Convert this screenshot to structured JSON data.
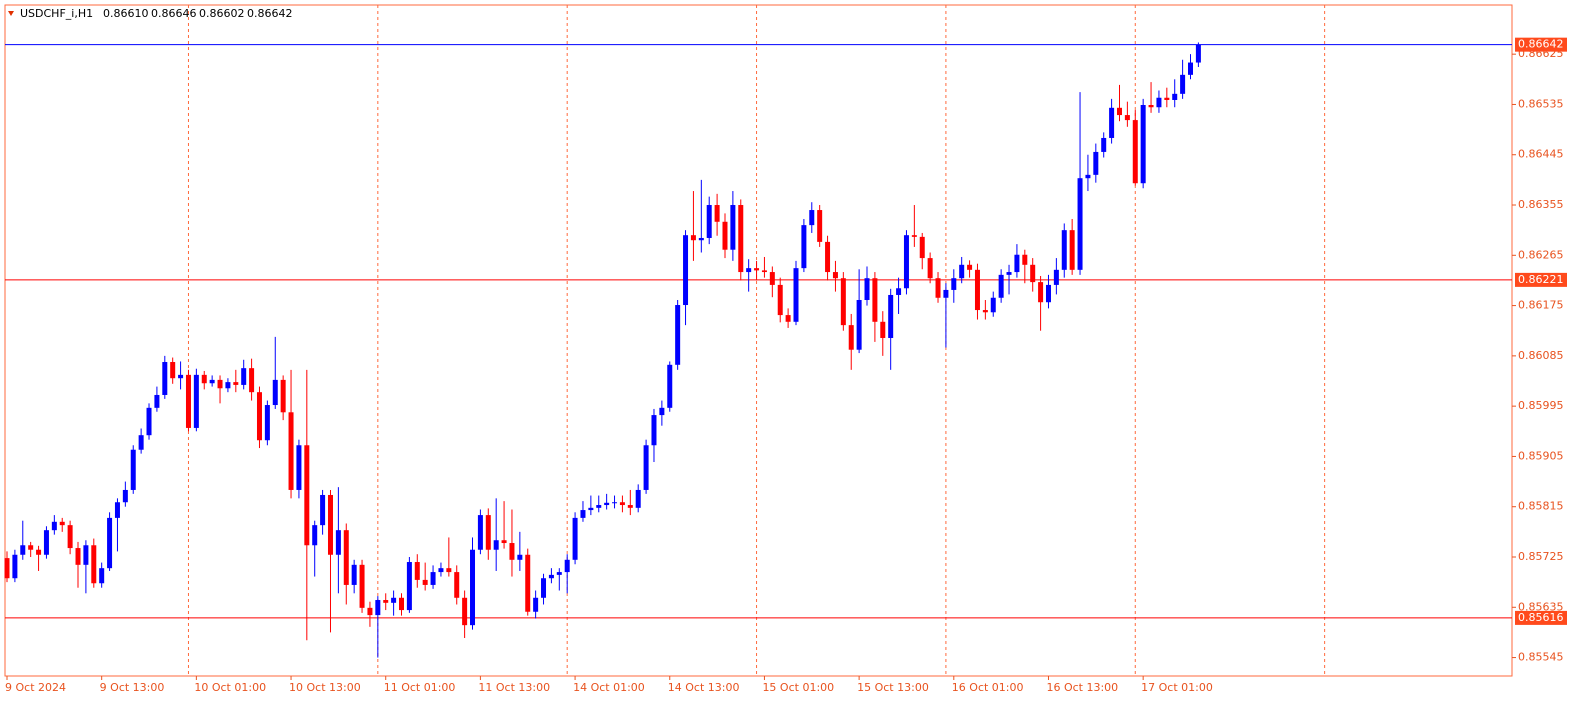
{
  "chart_data": {
    "type": "candlestick",
    "header": {
      "symbol": "USDCHF_i,H1",
      "values": [
        "0.86610",
        "0.86646",
        "0.86602",
        "0.86642"
      ]
    },
    "up_color": "#0000ff",
    "down_color": "#ff0000",
    "ylim": [
      0.85512,
      0.86713
    ],
    "yticks": [
      0.86625,
      0.86535,
      0.86445,
      0.86355,
      0.86265,
      0.86175,
      0.86085,
      0.85995,
      0.85905,
      0.85815,
      0.85725,
      0.85635,
      0.85545
    ],
    "price_lines": [
      {
        "value": 0.86642,
        "color": "#0000ff"
      },
      {
        "value": 0.86221,
        "color": "#ff0000"
      },
      {
        "value": 0.85616,
        "color": "#ff0000"
      }
    ],
    "categories": [
      "9 Oct 2024",
      null,
      null,
      null,
      null,
      null,
      null,
      null,
      null,
      null,
      null,
      null,
      "9 Oct 13:00",
      null,
      null,
      null,
      null,
      null,
      null,
      null,
      null,
      null,
      null,
      null,
      "10 Oct 01:00",
      null,
      null,
      null,
      null,
      null,
      null,
      null,
      null,
      null,
      null,
      null,
      "10 Oct 13:00",
      null,
      null,
      null,
      null,
      null,
      null,
      null,
      null,
      null,
      null,
      null,
      "11 Oct 01:00",
      null,
      null,
      null,
      null,
      null,
      null,
      null,
      null,
      null,
      null,
      null,
      "11 Oct 13:00",
      null,
      null,
      null,
      null,
      null,
      null,
      null,
      null,
      null,
      null,
      null,
      "14 Oct 01:00",
      null,
      null,
      null,
      null,
      null,
      null,
      null,
      null,
      null,
      null,
      null,
      "14 Oct 13:00",
      null,
      null,
      null,
      null,
      null,
      null,
      null,
      null,
      null,
      null,
      null,
      "15 Oct 01:00",
      null,
      null,
      null,
      null,
      null,
      null,
      null,
      null,
      null,
      null,
      null,
      "15 Oct 13:00",
      null,
      null,
      null,
      null,
      null,
      null,
      null,
      null,
      null,
      null,
      null,
      "16 Oct 01:00",
      null,
      null,
      null,
      null,
      null,
      null,
      null,
      null,
      null,
      null,
      null,
      "16 Oct 13:00",
      null,
      null,
      null,
      null,
      null,
      null,
      null,
      null,
      null,
      null,
      null,
      "17 Oct 01:00",
      null,
      null,
      null,
      null,
      null,
      null,
      null
    ],
    "ohlc": [
      [
        0.85723,
        0.85735,
        0.8568,
        0.85687
      ],
      [
        0.85687,
        0.85738,
        0.8568,
        0.85729
      ],
      [
        0.85729,
        0.8579,
        0.8572,
        0.85746
      ],
      [
        0.85746,
        0.85752,
        0.85725,
        0.85738
      ],
      [
        0.85738,
        0.85745,
        0.857,
        0.85729
      ],
      [
        0.85729,
        0.8578,
        0.85722,
        0.85773
      ],
      [
        0.85773,
        0.858,
        0.85765,
        0.85788
      ],
      [
        0.85788,
        0.85795,
        0.8577,
        0.85782
      ],
      [
        0.85782,
        0.8579,
        0.8573,
        0.85741
      ],
      [
        0.85741,
        0.85752,
        0.8567,
        0.85711
      ],
      [
        0.85711,
        0.85755,
        0.8566,
        0.85746
      ],
      [
        0.85746,
        0.85758,
        0.8567,
        0.85678
      ],
      [
        0.85678,
        0.85715,
        0.8567,
        0.85705
      ],
      [
        0.85705,
        0.85805,
        0.857,
        0.85795
      ],
      [
        0.85795,
        0.8583,
        0.85735,
        0.85823
      ],
      [
        0.85823,
        0.8586,
        0.85815,
        0.85845
      ],
      [
        0.85845,
        0.85925,
        0.85838,
        0.85917
      ],
      [
        0.85917,
        0.85955,
        0.8591,
        0.85943
      ],
      [
        0.85943,
        0.86,
        0.85935,
        0.85992
      ],
      [
        0.85992,
        0.8603,
        0.85985,
        0.86015
      ],
      [
        0.86015,
        0.86085,
        0.86008,
        0.86074
      ],
      [
        0.86074,
        0.86082,
        0.86035,
        0.86045
      ],
      [
        0.86045,
        0.86075,
        0.86025,
        0.86051
      ],
      [
        0.86051,
        0.8606,
        0.8595,
        0.85956
      ],
      [
        0.85956,
        0.86062,
        0.8595,
        0.86051
      ],
      [
        0.86051,
        0.86058,
        0.86025,
        0.86036
      ],
      [
        0.86036,
        0.8605,
        0.8603,
        0.86042
      ],
      [
        0.86042,
        0.8605,
        0.86,
        0.86027
      ],
      [
        0.86027,
        0.86045,
        0.8602,
        0.86038
      ],
      [
        0.86038,
        0.8606,
        0.8602,
        0.86033
      ],
      [
        0.86033,
        0.86078,
        0.86025,
        0.86063
      ],
      [
        0.86063,
        0.8608,
        0.86005,
        0.8602
      ],
      [
        0.8602,
        0.8603,
        0.8592,
        0.85934
      ],
      [
        0.85934,
        0.86005,
        0.85925,
        0.85997
      ],
      [
        0.85997,
        0.86119,
        0.8599,
        0.86042
      ],
      [
        0.86042,
        0.8605,
        0.8597,
        0.85984
      ],
      [
        0.85984,
        0.8606,
        0.8583,
        0.85845
      ],
      [
        0.85845,
        0.85935,
        0.8583,
        0.85925
      ],
      [
        0.85925,
        0.8606,
        0.85576,
        0.85746
      ],
      [
        0.85746,
        0.8579,
        0.8569,
        0.85782
      ],
      [
        0.85782,
        0.85845,
        0.85765,
        0.85836
      ],
      [
        0.85836,
        0.85845,
        0.8559,
        0.85729
      ],
      [
        0.85729,
        0.8585,
        0.8566,
        0.85773
      ],
      [
        0.85773,
        0.85785,
        0.8564,
        0.85675
      ],
      [
        0.85675,
        0.8572,
        0.8566,
        0.85711
      ],
      [
        0.85711,
        0.8572,
        0.85625,
        0.85634
      ],
      [
        0.85634,
        0.85645,
        0.856,
        0.85621
      ],
      [
        0.85621,
        0.85655,
        0.85545,
        0.85648
      ],
      [
        0.85648,
        0.8566,
        0.8563,
        0.85643
      ],
      [
        0.85643,
        0.85665,
        0.8562,
        0.85652
      ],
      [
        0.85652,
        0.8566,
        0.8562,
        0.8563
      ],
      [
        0.8563,
        0.85725,
        0.85625,
        0.85716
      ],
      [
        0.85716,
        0.8573,
        0.8567,
        0.85684
      ],
      [
        0.85684,
        0.85715,
        0.85665,
        0.85675
      ],
      [
        0.85675,
        0.8571,
        0.85668,
        0.85698
      ],
      [
        0.85698,
        0.85715,
        0.8569,
        0.85705
      ],
      [
        0.85705,
        0.8576,
        0.8569,
        0.85698
      ],
      [
        0.85698,
        0.8571,
        0.8564,
        0.85652
      ],
      [
        0.85652,
        0.85665,
        0.8558,
        0.85603
      ],
      [
        0.85603,
        0.8576,
        0.85595,
        0.85738
      ],
      [
        0.85738,
        0.8581,
        0.8573,
        0.858
      ],
      [
        0.858,
        0.85812,
        0.8572,
        0.85738
      ],
      [
        0.85738,
        0.8583,
        0.857,
        0.85755
      ],
      [
        0.85755,
        0.85825,
        0.8574,
        0.8575
      ],
      [
        0.8575,
        0.8581,
        0.8569,
        0.8572
      ],
      [
        0.8572,
        0.8577,
        0.857,
        0.85729
      ],
      [
        0.85729,
        0.8574,
        0.8562,
        0.85627
      ],
      [
        0.85627,
        0.85665,
        0.85615,
        0.85652
      ],
      [
        0.85652,
        0.85695,
        0.8564,
        0.85687
      ],
      [
        0.85687,
        0.85705,
        0.85678,
        0.85693
      ],
      [
        0.85693,
        0.85705,
        0.85665,
        0.85698
      ],
      [
        0.85698,
        0.8573,
        0.8566,
        0.8572
      ],
      [
        0.8572,
        0.85805,
        0.85712,
        0.85795
      ],
      [
        0.85795,
        0.85825,
        0.85788,
        0.85809
      ],
      [
        0.85809,
        0.85835,
        0.858,
        0.85813
      ],
      [
        0.85813,
        0.85835,
        0.85805,
        0.85818
      ],
      [
        0.85818,
        0.85838,
        0.8581,
        0.85822
      ],
      [
        0.85822,
        0.85835,
        0.85812,
        0.85823
      ],
      [
        0.85823,
        0.85835,
        0.85805,
        0.85818
      ],
      [
        0.85818,
        0.85845,
        0.858,
        0.85813
      ],
      [
        0.85813,
        0.85855,
        0.85805,
        0.85845
      ],
      [
        0.85845,
        0.85935,
        0.85838,
        0.85925
      ],
      [
        0.85925,
        0.8599,
        0.85895,
        0.85979
      ],
      [
        0.85979,
        0.86005,
        0.8596,
        0.85992
      ],
      [
        0.85992,
        0.86075,
        0.85985,
        0.86069
      ],
      [
        0.86069,
        0.86185,
        0.8606,
        0.86176
      ],
      [
        0.86176,
        0.8631,
        0.8614,
        0.86301
      ],
      [
        0.86301,
        0.8638,
        0.86255,
        0.86292
      ],
      [
        0.86292,
        0.864,
        0.8627,
        0.86296
      ],
      [
        0.86296,
        0.8637,
        0.86285,
        0.86355
      ],
      [
        0.86355,
        0.86375,
        0.863,
        0.86325
      ],
      [
        0.86325,
        0.8634,
        0.8626,
        0.86275
      ],
      [
        0.86275,
        0.8638,
        0.86255,
        0.86355
      ],
      [
        0.86355,
        0.86365,
        0.8622,
        0.86235
      ],
      [
        0.86235,
        0.86258,
        0.862,
        0.86242
      ],
      [
        0.86242,
        0.86255,
        0.8622,
        0.86238
      ],
      [
        0.86238,
        0.86262,
        0.86225,
        0.86235
      ],
      [
        0.86235,
        0.86245,
        0.8619,
        0.86212
      ],
      [
        0.86212,
        0.86225,
        0.86145,
        0.86158
      ],
      [
        0.86158,
        0.8617,
        0.86135,
        0.86146
      ],
      [
        0.86146,
        0.86255,
        0.8614,
        0.86242
      ],
      [
        0.86242,
        0.8633,
        0.86235,
        0.86319
      ],
      [
        0.86319,
        0.8636,
        0.86305,
        0.86346
      ],
      [
        0.86346,
        0.86355,
        0.8628,
        0.86289
      ],
      [
        0.86289,
        0.863,
        0.8622,
        0.86235
      ],
      [
        0.86235,
        0.86255,
        0.862,
        0.86224
      ],
      [
        0.86224,
        0.86235,
        0.8613,
        0.8614
      ],
      [
        0.8614,
        0.8616,
        0.8606,
        0.86096
      ],
      [
        0.86096,
        0.8624,
        0.8609,
        0.86185
      ],
      [
        0.86185,
        0.86245,
        0.86175,
        0.86224
      ],
      [
        0.86224,
        0.86235,
        0.8611,
        0.86146
      ],
      [
        0.86146,
        0.86165,
        0.86085,
        0.86117
      ],
      [
        0.86117,
        0.86205,
        0.8606,
        0.86194
      ],
      [
        0.86194,
        0.86225,
        0.8616,
        0.86206
      ],
      [
        0.86206,
        0.8631,
        0.86195,
        0.86301
      ],
      [
        0.86301,
        0.86355,
        0.8628,
        0.86298
      ],
      [
        0.86298,
        0.86305,
        0.8624,
        0.8626
      ],
      [
        0.8626,
        0.8627,
        0.86215,
        0.86224
      ],
      [
        0.86224,
        0.86235,
        0.8618,
        0.86189
      ],
      [
        0.86189,
        0.86215,
        0.861,
        0.86203
      ],
      [
        0.86203,
        0.8624,
        0.8618,
        0.86224
      ],
      [
        0.86224,
        0.86262,
        0.86215,
        0.86248
      ],
      [
        0.86248,
        0.86256,
        0.86225,
        0.86239
      ],
      [
        0.86239,
        0.8625,
        0.8615,
        0.86167
      ],
      [
        0.86167,
        0.86185,
        0.8615,
        0.86163
      ],
      [
        0.86163,
        0.862,
        0.86155,
        0.86189
      ],
      [
        0.86189,
        0.8624,
        0.8618,
        0.8623
      ],
      [
        0.8623,
        0.86248,
        0.86195,
        0.86235
      ],
      [
        0.86235,
        0.86285,
        0.86225,
        0.86266
      ],
      [
        0.86266,
        0.86275,
        0.86215,
        0.86248
      ],
      [
        0.86248,
        0.8626,
        0.862,
        0.86217
      ],
      [
        0.86217,
        0.86228,
        0.8613,
        0.86181
      ],
      [
        0.86181,
        0.8623,
        0.8617,
        0.86212
      ],
      [
        0.86212,
        0.8626,
        0.86195,
        0.86239
      ],
      [
        0.86239,
        0.86322,
        0.86225,
        0.8631
      ],
      [
        0.8631,
        0.8633,
        0.8623,
        0.86239
      ],
      [
        0.86239,
        0.86557,
        0.8623,
        0.86403
      ],
      [
        0.86403,
        0.86445,
        0.8638,
        0.86409
      ],
      [
        0.86409,
        0.86465,
        0.86395,
        0.8645
      ],
      [
        0.8645,
        0.86485,
        0.8644,
        0.86475
      ],
      [
        0.86475,
        0.86545,
        0.86465,
        0.86529
      ],
      [
        0.86529,
        0.8657,
        0.86505,
        0.86516
      ],
      [
        0.86516,
        0.8654,
        0.86495,
        0.86507
      ],
      [
        0.86507,
        0.86525,
        0.8639,
        0.86394
      ],
      [
        0.86394,
        0.86545,
        0.86385,
        0.86534
      ],
      [
        0.86534,
        0.86575,
        0.8652,
        0.8653
      ],
      [
        0.8653,
        0.8656,
        0.8652,
        0.86547
      ],
      [
        0.86547,
        0.86565,
        0.8653,
        0.86543
      ],
      [
        0.86543,
        0.8658,
        0.8653,
        0.86554
      ],
      [
        0.86554,
        0.86615,
        0.86545,
        0.86588
      ],
      [
        0.86588,
        0.86625,
        0.8658,
        0.8661
      ],
      [
        0.8661,
        0.86646,
        0.86602,
        0.86642
      ]
    ]
  }
}
